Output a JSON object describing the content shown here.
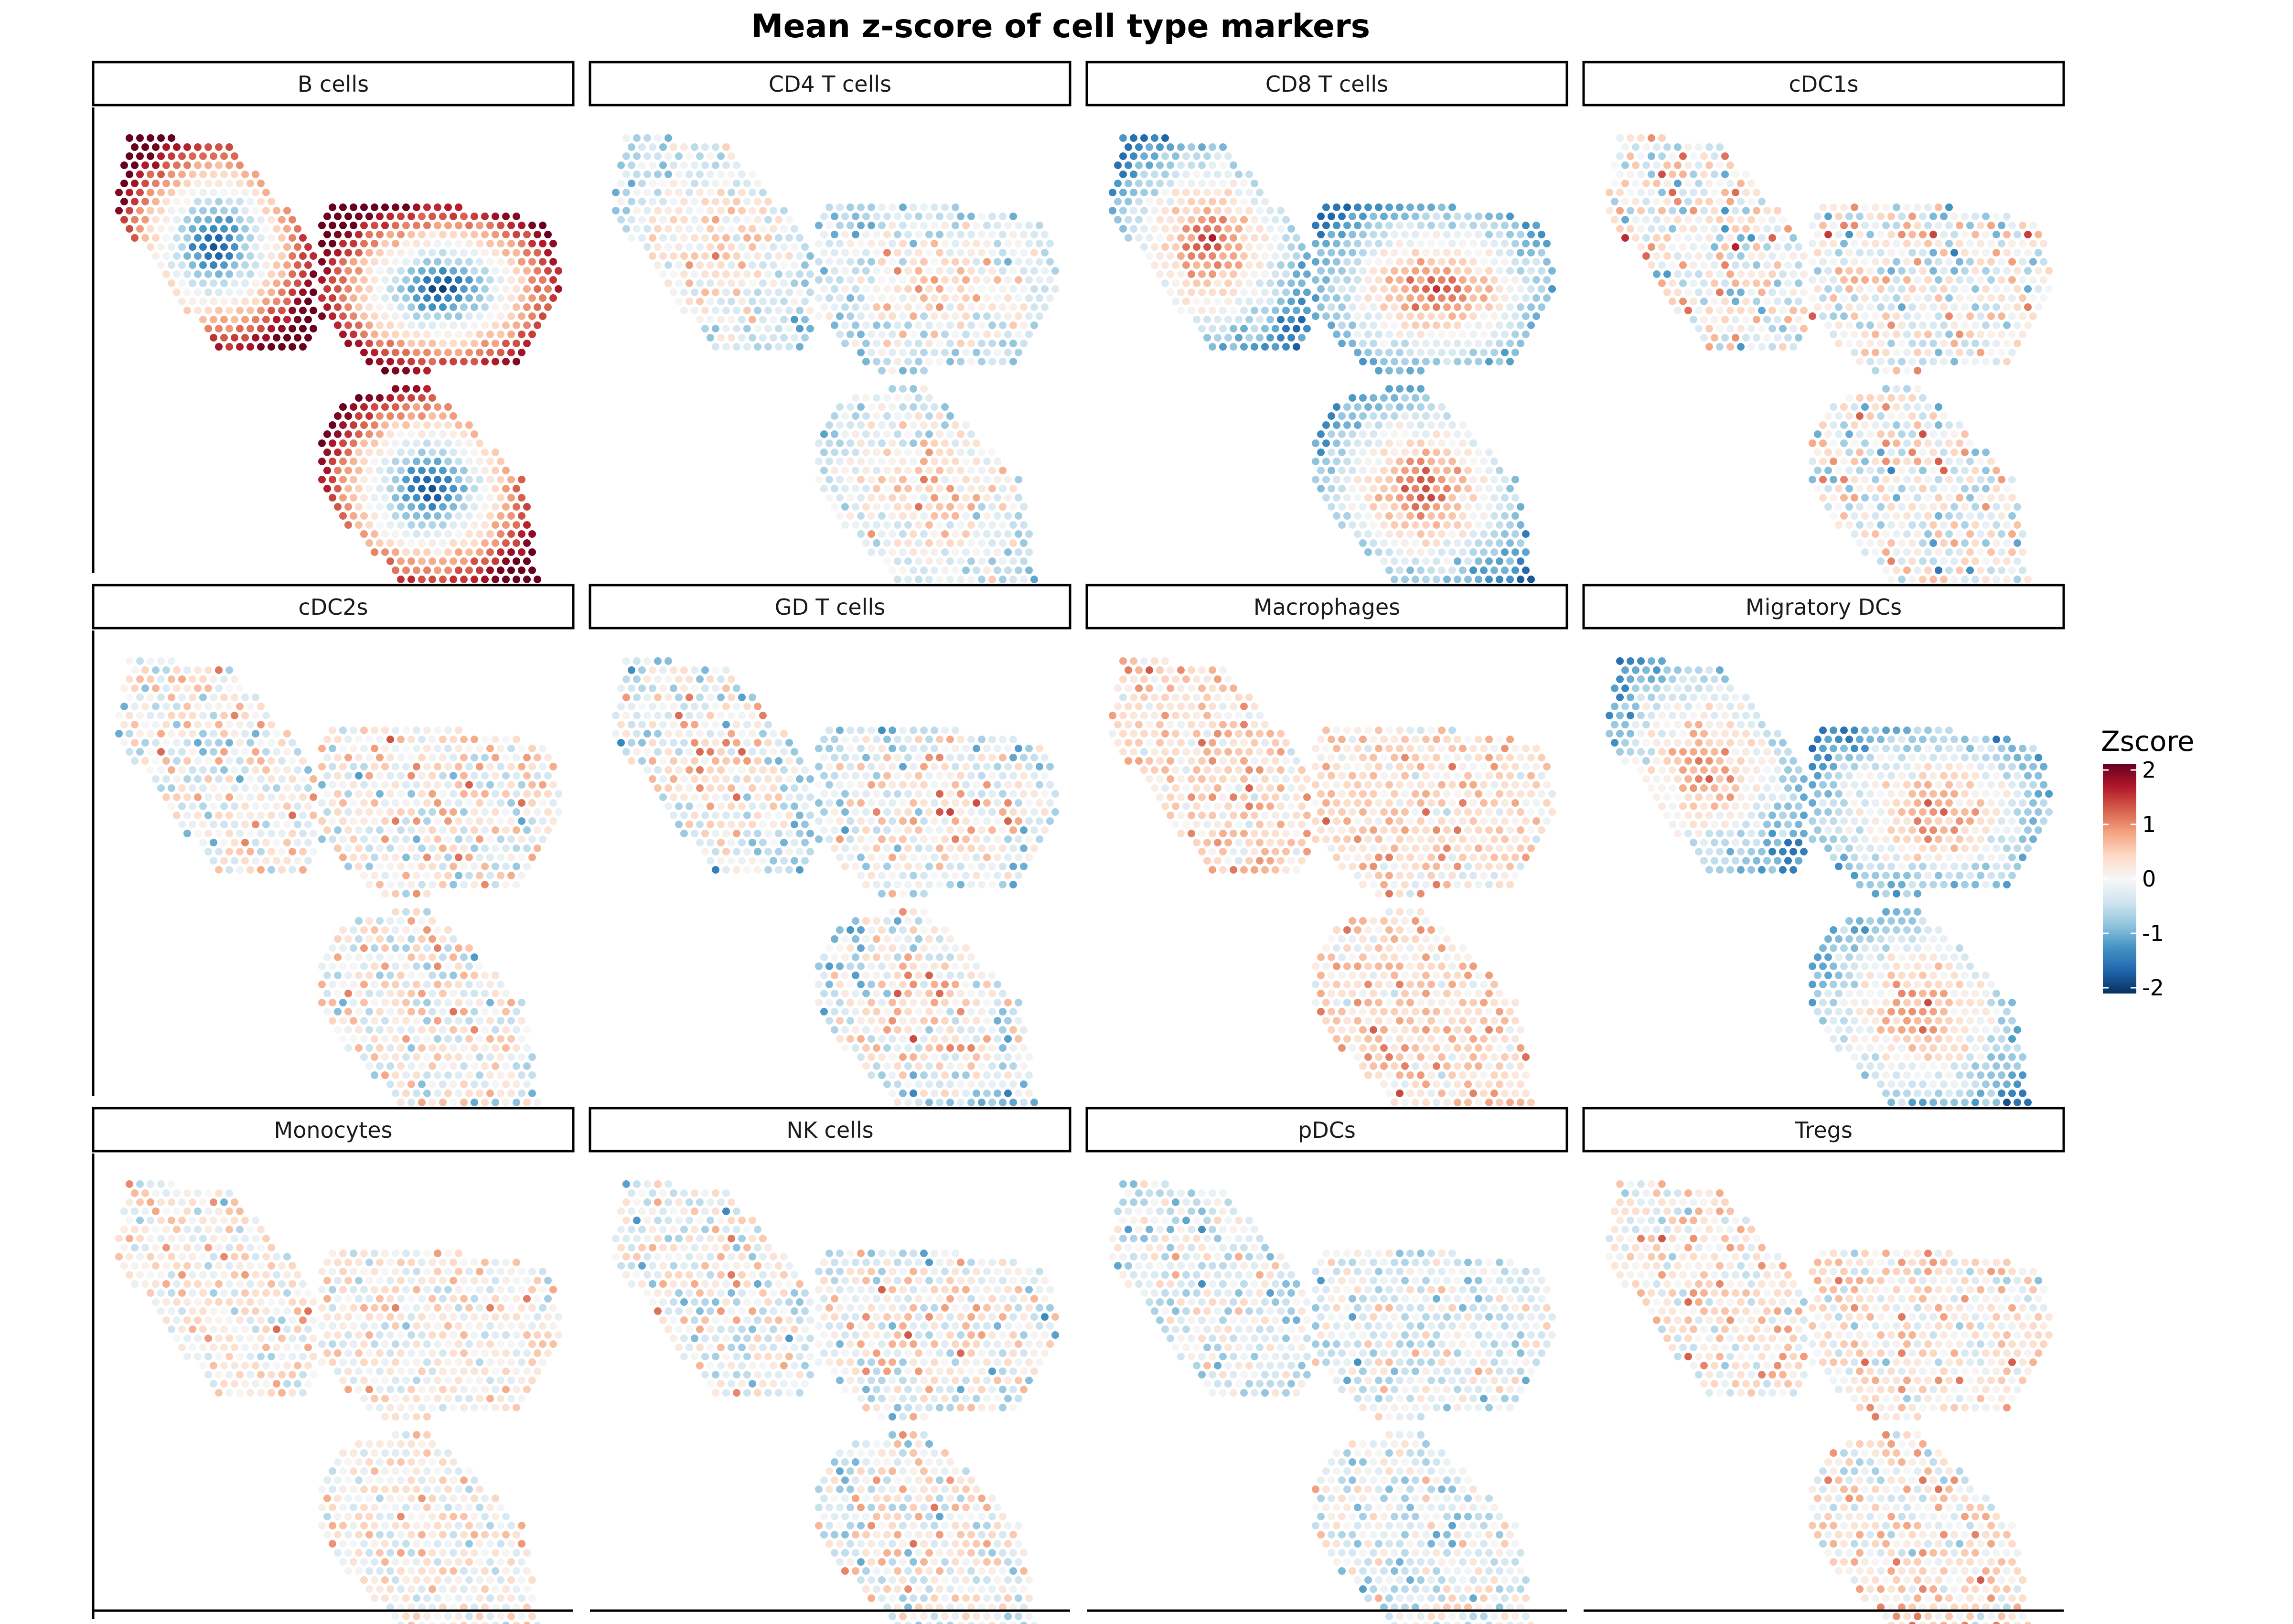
{
  "chart_data": {
    "type": "scatter",
    "title": "Mean z-score of cell type markers",
    "facets": [
      {
        "label": "B cells"
      },
      {
        "label": "CD4 T cells"
      },
      {
        "label": "CD8 T cells"
      },
      {
        "label": "cDC1s"
      },
      {
        "label": "cDC2s"
      },
      {
        "label": "GD T cells"
      },
      {
        "label": "Macrophages"
      },
      {
        "label": "Migratory DCs"
      },
      {
        "label": "Monocytes"
      },
      {
        "label": "NK cells"
      },
      {
        "label": "pDCs"
      },
      {
        "label": "Tregs"
      }
    ],
    "legend": {
      "title": "Zscore",
      "ticks": [
        "2",
        "1",
        "0",
        "-1",
        "-2"
      ],
      "range": [
        -2,
        2
      ],
      "placement": "right",
      "colors": [
        "#053061",
        "#2166ac",
        "#4393c3",
        "#92c5de",
        "#d1e5f0",
        "#f7f7f7",
        "#fddbc7",
        "#f4a582",
        "#d6604d",
        "#b2182b",
        "#67001f"
      ]
    },
    "facet_grid": {
      "rows": 3,
      "cols": 4
    },
    "axes_visible": false
  }
}
